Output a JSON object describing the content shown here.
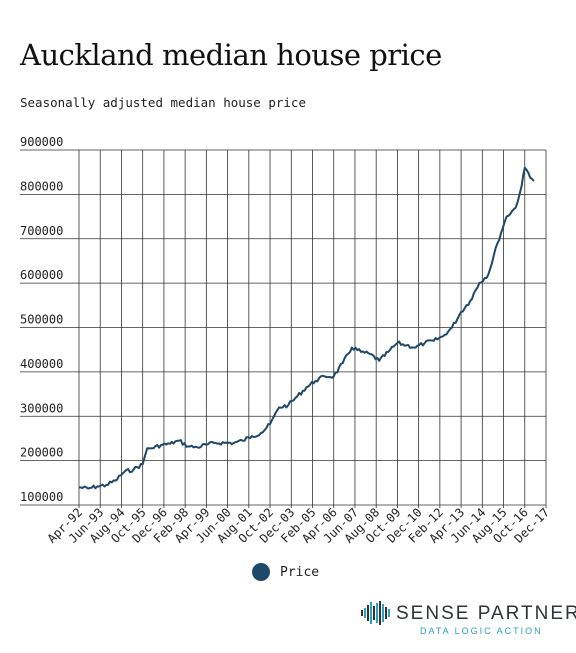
{
  "title": "Auckland median house price",
  "subtitle": "Seasonally adjusted median house price",
  "colors": {
    "series": "#1f4868",
    "grid": "#333333",
    "logo_accent": "#2aa3bc"
  },
  "legend": {
    "label": "Price",
    "marker": "filled-circle"
  },
  "logo": {
    "name": "SENSE PARTNERS",
    "tagline": "DATA LOGIC ACTION",
    "icon": "sound-wave-icon"
  },
  "chart_data": {
    "type": "line",
    "title": "Auckland median house price",
    "subtitle": "Seasonally adjusted median house price",
    "xlabel": "",
    "ylabel": "",
    "ylim": [
      100000,
      900000
    ],
    "yticks": [
      900000,
      800000,
      700000,
      600000,
      500000,
      400000,
      300000,
      200000,
      100000
    ],
    "xticks": [
      "Apr-92",
      "Jun-93",
      "Aug-94",
      "Oct-95",
      "Dec-96",
      "Feb-98",
      "Apr-99",
      "Jun-00",
      "Aug-01",
      "Oct-02",
      "Dec-03",
      "Feb-05",
      "Apr-06",
      "Jun-07",
      "Aug-08",
      "Oct-09",
      "Dec-10",
      "Feb-12",
      "Apr-13",
      "Jun-14",
      "Aug-15",
      "Oct-16",
      "Dec-17"
    ],
    "grid": true,
    "legend_position": "bottom",
    "series": [
      {
        "name": "Price",
        "x": [
          "Apr-92",
          "Oct-92",
          "Apr-93",
          "Oct-93",
          "Apr-94",
          "Oct-94",
          "Apr-95",
          "Oct-95",
          "Jan-96",
          "Apr-96",
          "Oct-96",
          "Apr-97",
          "Oct-97",
          "Apr-98",
          "Oct-98",
          "Apr-99",
          "Oct-99",
          "Apr-00",
          "Oct-00",
          "Apr-01",
          "Oct-01",
          "Apr-02",
          "Oct-02",
          "Apr-03",
          "Oct-03",
          "Apr-04",
          "Oct-04",
          "Apr-05",
          "Oct-05",
          "Apr-06",
          "Oct-06",
          "Apr-07",
          "Oct-07",
          "Apr-08",
          "Oct-08",
          "Apr-09",
          "Oct-09",
          "Apr-10",
          "Oct-10",
          "Apr-11",
          "Oct-11",
          "Apr-12",
          "Oct-12",
          "Apr-13",
          "Oct-13",
          "Apr-14",
          "Oct-14",
          "Apr-15",
          "Oct-15",
          "Apr-16",
          "Aug-16",
          "Oct-16",
          "Apr-17"
        ],
        "values": [
          140000,
          137000,
          142000,
          145000,
          155000,
          175000,
          180000,
          192000,
          228000,
          228000,
          235000,
          238000,
          245000,
          232000,
          230000,
          236000,
          240000,
          240000,
          240000,
          245000,
          255000,
          262000,
          282000,
          320000,
          325000,
          345000,
          365000,
          380000,
          390000,
          390000,
          420000,
          455000,
          445000,
          440000,
          425000,
          445000,
          465000,
          460000,
          455000,
          465000,
          470000,
          480000,
          500000,
          535000,
          560000,
          600000,
          620000,
          690000,
          750000,
          770000,
          820000,
          860000,
          830000
        ]
      }
    ]
  }
}
